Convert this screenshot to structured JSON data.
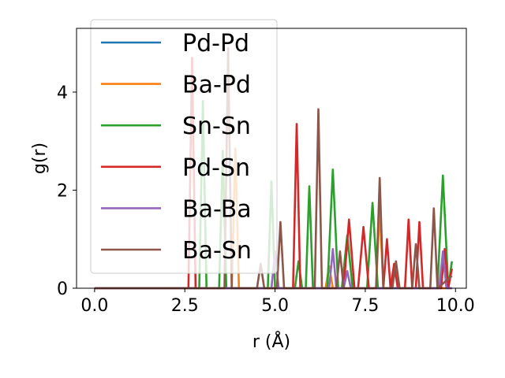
{
  "chart_data": {
    "type": "line",
    "title": "",
    "xlabel": "r (Å)",
    "ylabel": "g(r)",
    "xlim": [
      -0.5,
      10.3
    ],
    "ylim": [
      0,
      5.3
    ],
    "xticks": [
      0.0,
      2.5,
      5.0,
      7.5,
      10.0
    ],
    "xtick_labels": [
      "0.0",
      "2.5",
      "5.0",
      "7.5",
      "10.0"
    ],
    "yticks": [
      0,
      2,
      4
    ],
    "ytick_labels": [
      "0",
      "2",
      "4"
    ],
    "grid": false,
    "legend_position": "upper-left",
    "series": [
      {
        "name": "Pd-Pd",
        "color": "#1f77b4",
        "x": [
          0.0,
          9.9
        ],
        "y": [
          0.0,
          0.0
        ]
      },
      {
        "name": "Ba-Pd",
        "color": "#ff7f0e",
        "x": [
          0.0,
          3.8,
          3.9,
          4.0,
          6.4,
          6.5,
          6.6,
          7.8,
          7.9,
          8.0,
          9.9
        ],
        "y": [
          0.0,
          0.0,
          2.85,
          0.0,
          0.0,
          0.45,
          0.0,
          0.0,
          1.65,
          0.0,
          0.0
        ]
      },
      {
        "name": "Sn-Sn",
        "color": "#2ca02c",
        "x": [
          0.0,
          2.9,
          3.0,
          3.1,
          3.45,
          3.55,
          3.65,
          4.8,
          4.9,
          5.0,
          5.55,
          5.65,
          5.75,
          5.85,
          5.95,
          6.05,
          6.45,
          6.6,
          6.75,
          6.85,
          7.0,
          7.15,
          7.55,
          7.7,
          7.85,
          9.5,
          9.65,
          9.8,
          9.9
        ],
        "y": [
          0.0,
          0.0,
          3.82,
          0.0,
          0.0,
          2.8,
          0.0,
          0.0,
          2.18,
          0.0,
          0.0,
          0.55,
          0.0,
          0.0,
          2.08,
          0.0,
          0.0,
          2.42,
          0.0,
          0.0,
          1.08,
          0.0,
          0.0,
          1.74,
          0.0,
          0.0,
          2.3,
          0.0,
          0.55
        ]
      },
      {
        "name": "Pd-Sn",
        "color": "#d62728",
        "x": [
          0.0,
          2.5,
          2.6,
          2.7,
          2.8,
          5.5,
          5.6,
          5.7,
          6.9,
          7.05,
          7.2,
          7.3,
          7.45,
          7.6,
          8.0,
          8.1,
          8.2,
          8.3,
          8.4,
          8.5,
          8.6,
          8.7,
          8.8,
          8.9,
          9.0,
          9.1,
          9.2,
          9.3,
          9.4,
          9.5,
          9.6,
          9.7,
          9.8,
          9.9
        ],
        "y": [
          0.0,
          0.0,
          0.0,
          4.7,
          0.0,
          0.0,
          3.35,
          0.0,
          0.0,
          1.4,
          0.0,
          0.0,
          1.25,
          0.0,
          0.0,
          1.0,
          0.0,
          0.5,
          0.0,
          0.0,
          0.0,
          1.4,
          0.0,
          0.0,
          1.35,
          0.0,
          0.0,
          0.0,
          0.0,
          0.0,
          0.0,
          0.8,
          0.0,
          0.4
        ]
      },
      {
        "name": "Ba-Ba",
        "color": "#9467bd",
        "x": [
          0.0,
          4.9,
          5.0,
          5.1,
          6.5,
          6.6,
          6.7,
          6.9,
          7.0,
          7.1,
          9.55,
          9.65,
          9.75,
          9.9
        ],
        "y": [
          0.0,
          0.0,
          0.75,
          0.0,
          0.0,
          0.8,
          0.0,
          0.0,
          0.35,
          0.0,
          0.0,
          0.75,
          0.0,
          0.0
        ]
      },
      {
        "name": "Ba-Sn",
        "color": "#8c564b",
        "x": [
          0.0,
          3.6,
          3.7,
          3.8,
          4.5,
          4.6,
          4.7,
          5.05,
          5.15,
          5.25,
          6.1,
          6.2,
          6.3,
          6.7,
          6.8,
          6.9,
          7.8,
          7.9,
          8.0,
          8.25,
          8.35,
          8.45,
          8.8,
          8.9,
          9.0,
          9.3,
          9.4,
          9.5,
          9.9
        ],
        "y": [
          0.0,
          0.0,
          4.9,
          0.0,
          0.0,
          0.5,
          0.0,
          0.0,
          1.35,
          0.0,
          0.0,
          3.65,
          0.0,
          0.0,
          0.75,
          0.0,
          0.0,
          2.25,
          0.0,
          0.0,
          0.55,
          0.0,
          0.0,
          0.9,
          0.0,
          0.0,
          1.63,
          0.0,
          0.25
        ]
      }
    ]
  }
}
